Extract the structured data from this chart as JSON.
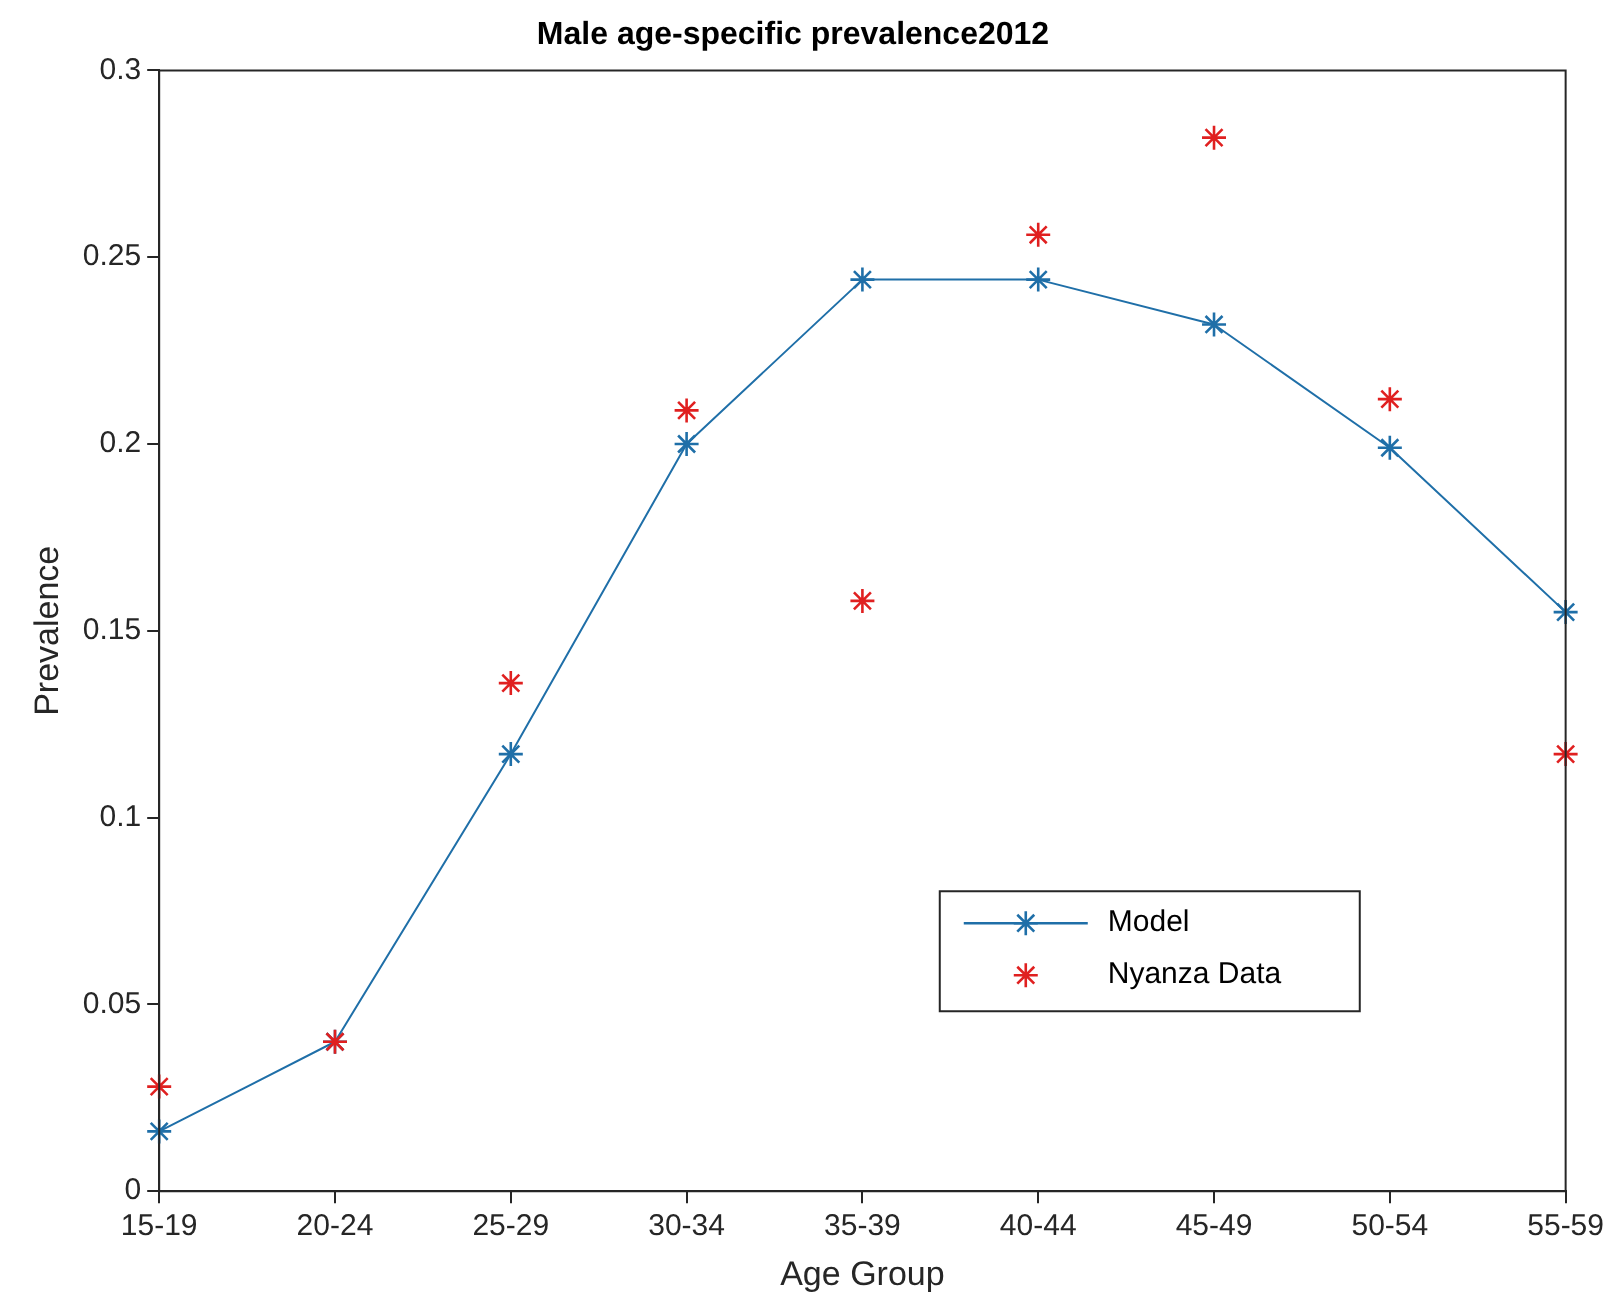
{
  "chart_data": {
    "type": "line",
    "title": "Male age-specific prevalence2012",
    "xlabel": "Age Group",
    "ylabel": "Prevalence",
    "categories": [
      "15-19",
      "20-24",
      "25-29",
      "30-34",
      "35-39",
      "40-44",
      "45-49",
      "50-54",
      "55-59"
    ],
    "series": [
      {
        "name": "Model",
        "type": "line",
        "color": "#1f6fa8",
        "marker": "cross",
        "line_style": "solid",
        "values": [
          0.016,
          0.04,
          0.117,
          0.2,
          0.244,
          0.244,
          0.232,
          0.199,
          0.155
        ]
      },
      {
        "name": "Nyanza Data",
        "type": "scatter",
        "color": "#e02020",
        "marker": "cross",
        "values": [
          0.028,
          0.04,
          0.136,
          0.209,
          0.158,
          0.256,
          0.282,
          0.212,
          0.117
        ]
      }
    ],
    "ylim": [
      0,
      0.3
    ],
    "yticks": [
      0,
      0.05,
      0.1,
      0.15,
      0.2,
      0.25,
      0.3
    ],
    "grid": false,
    "legend": "bottom right"
  }
}
